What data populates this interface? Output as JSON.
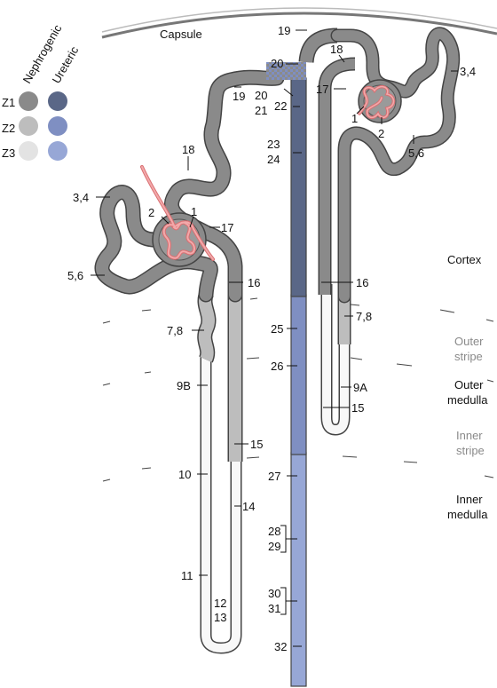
{
  "capsule": {
    "label": "Capsule"
  },
  "legend": {
    "column_headers": [
      "Nephrogenic",
      "Ureteric"
    ],
    "rows": [
      "Z1",
      "Z2",
      "Z3"
    ],
    "colors": {
      "nephrogenic": [
        "#8a8a8a",
        "#bdbdbd",
        "#e3e3e3"
      ],
      "ureteric": [
        "#5a6787",
        "#7f8fc2",
        "#97a7d6"
      ]
    }
  },
  "zones": {
    "cortex": "Cortex",
    "outer_stripe": [
      "Outer",
      "stripe"
    ],
    "outer_medulla": [
      "Outer",
      "medulla"
    ],
    "inner_stripe": [
      "Inner",
      "stripe"
    ],
    "inner_medulla": [
      "Inner",
      "medulla"
    ]
  },
  "labels": {
    "left": {
      "l18": "18",
      "l19": "19",
      "l34": "3,4",
      "l2": "2",
      "l1": "1",
      "l17": "17",
      "l56": "5,6",
      "l16": "16",
      "l78": "7,8",
      "l9b": "9B",
      "l15": "15",
      "l10": "10",
      "l14": "14",
      "l11": "11",
      "l12": "12",
      "l13": "13"
    },
    "collecting": {
      "c19": "19",
      "c20a": "20",
      "c20b": "20",
      "c21": "21",
      "c22": "22",
      "c23": "23",
      "c24": "24",
      "c25": "25",
      "c26": "26",
      "c27": "27",
      "c28": "28",
      "c29": "29",
      "c30": "30",
      "c31": "31",
      "c32": "32"
    },
    "right": {
      "r18": "18",
      "r34": "3,4",
      "r17": "17",
      "r1": "1",
      "r2": "2",
      "r56": "5,6",
      "r16": "16",
      "r78": "7,8",
      "r9a": "9A",
      "r15": "15"
    }
  }
}
